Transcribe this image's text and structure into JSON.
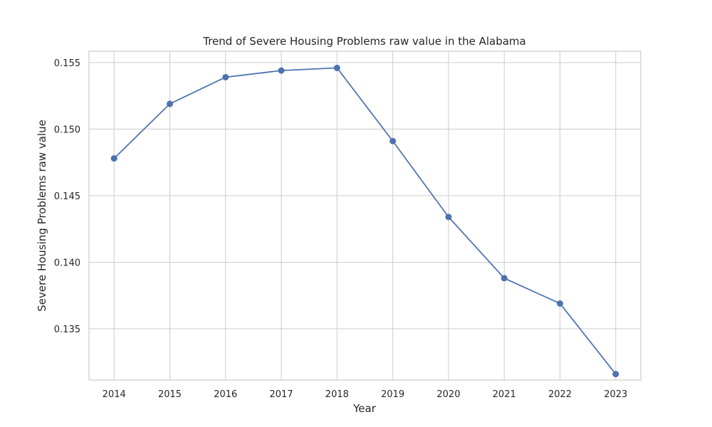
{
  "chart_data": {
    "type": "line",
    "title": "Trend of Severe Housing Problems raw value in the Alabama",
    "xlabel": "Year",
    "ylabel": "Severe Housing Problems raw value",
    "x": [
      2014,
      2015,
      2016,
      2017,
      2018,
      2019,
      2020,
      2021,
      2022,
      2023
    ],
    "series": [
      {
        "values": [
          0.1478,
          0.1519,
          0.1539,
          0.1544,
          0.1546,
          0.1491,
          0.1434,
          0.1388,
          0.1369,
          0.1316
        ],
        "color": "#4c72b0",
        "marker": "circle"
      }
    ],
    "x_ticks": [
      "2014",
      "2015",
      "2016",
      "2017",
      "2018",
      "2019",
      "2020",
      "2021",
      "2022",
      "2023"
    ],
    "y_ticks": [
      "0.135",
      "0.140",
      "0.145",
      "0.150",
      "0.155"
    ],
    "y_tick_values": [
      0.135,
      0.14,
      0.145,
      0.15,
      0.155
    ],
    "xlim": [
      2013.55,
      2023.45
    ],
    "ylim": [
      0.13115,
      0.15585
    ],
    "grid": true,
    "colors": {
      "grid": "#cccccc",
      "text": "#262626",
      "line": "#4c72b0"
    }
  }
}
